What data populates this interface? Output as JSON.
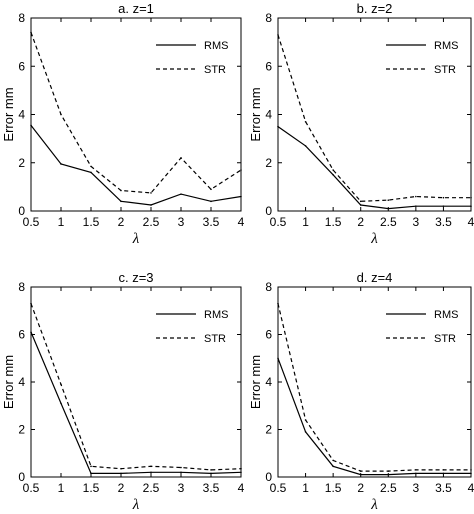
{
  "chart_data": [
    {
      "type": "line",
      "title": "a. z=1",
      "xlabel": "λ",
      "ylabel": "Error mm",
      "xlim": [
        0.5,
        4
      ],
      "ylim": [
        0,
        8
      ],
      "xticks": [
        "0.5",
        "1",
        "1.5",
        "2",
        "2.5",
        "3",
        "3.5",
        "4"
      ],
      "yticks": [
        "0",
        "2",
        "4",
        "6",
        "8"
      ],
      "legend_position": "top-right",
      "x": [
        0.5,
        1,
        1.5,
        2,
        2.5,
        3,
        3.5,
        4
      ],
      "series": [
        {
          "name": "RMS",
          "style": "solid",
          "values": [
            3.55,
            1.95,
            1.6,
            0.4,
            0.25,
            0.7,
            0.4,
            0.6
          ]
        },
        {
          "name": "STR",
          "style": "dashed",
          "values": [
            7.4,
            4.0,
            1.85,
            0.85,
            0.75,
            2.2,
            0.9,
            1.7
          ]
        }
      ]
    },
    {
      "type": "line",
      "title": "b. z=2",
      "xlabel": "λ",
      "ylabel": "Error mm",
      "xlim": [
        0.5,
        4
      ],
      "ylim": [
        0,
        8
      ],
      "xticks": [
        "0.5",
        "1",
        "1.5",
        "2",
        "2.5",
        "3",
        "3.5",
        "4"
      ],
      "yticks": [
        "0",
        "2",
        "4",
        "6",
        "8"
      ],
      "legend_position": "top-right",
      "x": [
        0.5,
        1,
        1.5,
        2,
        2.5,
        3,
        3.5,
        4
      ],
      "series": [
        {
          "name": "RMS",
          "style": "solid",
          "values": [
            3.5,
            2.7,
            1.5,
            0.25,
            0.1,
            0.2,
            0.2,
            0.2
          ]
        },
        {
          "name": "STR",
          "style": "dashed",
          "values": [
            7.3,
            3.7,
            1.7,
            0.4,
            0.45,
            0.6,
            0.55,
            0.55
          ]
        }
      ]
    },
    {
      "type": "line",
      "title": "c. z=3",
      "xlabel": "λ",
      "ylabel": "Error mm",
      "xlim": [
        0.5,
        4
      ],
      "ylim": [
        0,
        8
      ],
      "xticks": [
        "0.5",
        "1",
        "1.5",
        "2",
        "2.5",
        "3",
        "3.5",
        "4"
      ],
      "yticks": [
        "0",
        "2",
        "4",
        "6",
        "8"
      ],
      "legend_position": "top-right",
      "x": [
        0.5,
        1,
        1.5,
        2,
        2.5,
        3,
        3.5,
        4
      ],
      "series": [
        {
          "name": "RMS",
          "style": "solid",
          "values": [
            6.1,
            3.1,
            0.15,
            0.15,
            0.2,
            0.2,
            0.15,
            0.2
          ]
        },
        {
          "name": "STR",
          "style": "dashed",
          "values": [
            7.3,
            3.9,
            0.45,
            0.35,
            0.45,
            0.4,
            0.3,
            0.35
          ]
        }
      ]
    },
    {
      "type": "line",
      "title": "d. z=4",
      "xlabel": "λ",
      "ylabel": "Error mm",
      "xlim": [
        0.5,
        4
      ],
      "ylim": [
        0,
        8
      ],
      "xticks": [
        "0.5",
        "1",
        "1.5",
        "2",
        "2.5",
        "3",
        "3.5",
        "4"
      ],
      "yticks": [
        "0",
        "2",
        "4",
        "6",
        "8"
      ],
      "legend_position": "top-right",
      "x": [
        0.5,
        1,
        1.5,
        2,
        2.5,
        3,
        3.5,
        4
      ],
      "series": [
        {
          "name": "RMS",
          "style": "solid",
          "values": [
            5.0,
            1.9,
            0.45,
            0.1,
            0.1,
            0.15,
            0.15,
            0.15
          ]
        },
        {
          "name": "STR",
          "style": "dashed",
          "values": [
            7.3,
            2.4,
            0.7,
            0.25,
            0.25,
            0.3,
            0.3,
            0.3
          ]
        }
      ]
    }
  ]
}
